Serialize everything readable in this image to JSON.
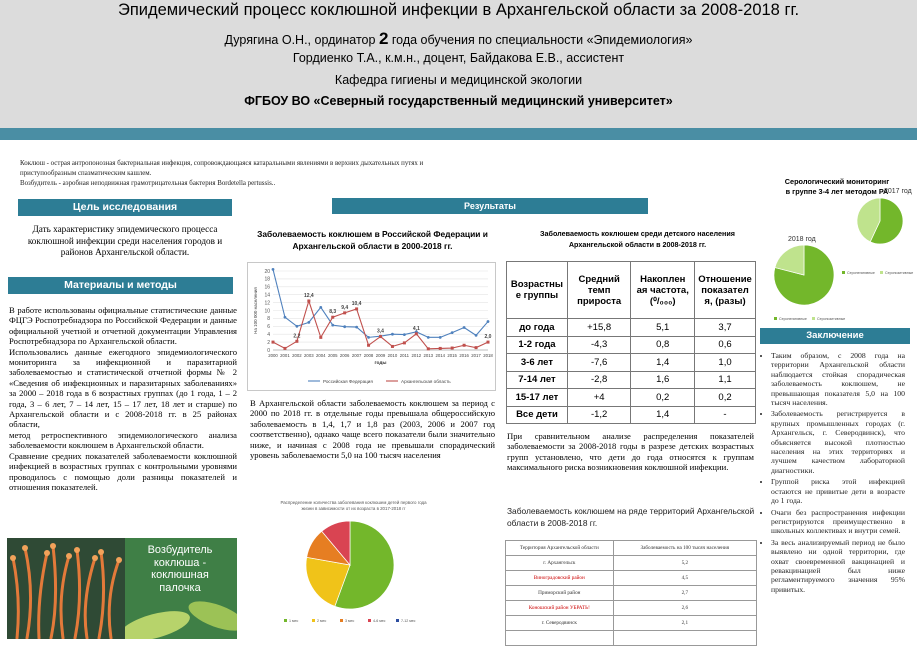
{
  "header": {
    "title": "Эпидемический процесс коклюшной инфекции в Архангельской области за 2008-2018 гг.",
    "authors_line1_a": "Дурягина О.Н., ординатор ",
    "authors_line1_num": "2",
    "authors_line1_b": " года обучения по специальности «Эпидемиология»",
    "authors_line2": "Гордиенко Т.А., к.м.н., доцент, Байдакова Е.В., ассистент",
    "department": "Кафедра гигиены и медицинской экологии",
    "university": "ФГБОУ ВО «Северный государственный медицинский университет»"
  },
  "intro": {
    "line1": "Коклюш - острая антропонозная бактериальная инфекция, сопровождающаяся катаральными явлениями в верхних дыхательных путях и",
    "line2": "приступообразным спазматическим кашлем.",
    "line3": "Возбудитель - аэробная неподвижная грамотрицательная бактерия Bordetella pertussis.."
  },
  "aim": {
    "heading": "Цель исследования",
    "text": "Дать характеристику эпидемического процесса коклюшной инфекции среди населения городов и районов Архангельской области."
  },
  "methods": {
    "heading": "Материалы и методы",
    "p1": "В работе использованы официальные статистические данные ФЦГЭ Роспотребнадзора по Российской Федерации и данные официальной учетной и отчетной документации Управления Роспотребнадзора по Архангельской области.",
    "p2": "Использовались данные ежегодного эпидемиологического мониторинга за инфекционной и паразитарной заболеваемостью и статистической отчетной формы № 2 «Сведения об инфекционных и паразитарных заболеваниях» за 2000 – 2018 года в 6 возрастных группах (до 1 года, 1 – 2 года, 3 – 6 лет, 7 – 14 лет, 15 – 17 лет, 18 лет и старше) по Архангельской области и с 2008-2018 гг. в 25 районах области,",
    "p3": "метод ретроспективного эпидемиологического анализа заболеваемости коклюшем в Архангельской области.",
    "p4": "Сравнение средних показателей заболеваемости коклюшной инфекцией в возрастных группах с контрольными уровнями проводилось с помощью доли разницы показателей и отношения показателей."
  },
  "image": {
    "caption": "Возбудитель коклюша - коклюшная палочка"
  },
  "results": {
    "heading": "Результаты",
    "chart1_title": "Заболеваемость коклюшем в Российской Федерации и Архангельской области в 2000-2018 гг.",
    "chart1_text": "В Архангельской области заболеваемость коклюшем за период с 2000 по 2018 гг. в отдельные годы превышала общероссийскую заболеваемость в 1,4, 1,7 и 1,8 раз (2003, 2006 и 2007 год соответственно), однако чаще всего показатели были значительно ниже, и начиная с 2008 года не превышали спорадический уровень заболеваемости 5,0 на 100 тысяч населения",
    "pie_title": "Распределение количества заболевания коклюшем детей первого года жизни в зависимости от их возраста в 2017-2018 гг",
    "table_title": "Заболеваемость коклюшем среди детского населения Архангельской области в 2008-2018 гг.",
    "table_text": "При сравнительном анализе распределения показателей заболеваемости за 2008-2018 годы в разрезе детских возрастных групп установлено, что дети до года относятся к группам максимального риска возникновения коклюшной инфекции.",
    "territory_title": "Заболеваемость коклюшем на ряде территорий Архангельской области в 2008-2018 гг."
  },
  "serology": {
    "title_line1": "Серологический мониторинг",
    "title_line2": "в группе 3-4 лет методом РА",
    "year_2017": "2017 год",
    "year_2018": "2018 год"
  },
  "conclusion": {
    "heading": "Заключение",
    "items": [
      "Таким образом, с 2008 года на территории Архангельской области наблюдается стойкая спорадическая заболеваемость коклюшем, не превышающая показателя 5,0 на 100 тысяч населения.",
      "Заболеваемость регистрируется в крупных промышленных городах (г. Архангельск, г. Северодвинск), что объясняется высокой плотностью населения на этих территориях и лучшем качеством лабораторной диагностики.",
      "Группой риска этой инфекцией остаются не привитые дети в возрасте до 1 года.",
      "Очаги без распространения инфекции регистрируются преимущественно в школьных коллективах и внутри семей.",
      "За весь анализируемый период не было выявлено ни одной территории, где охват своевременной вакцинацией и ревакцинацией был ниже регламентируемого значения 95% привитых."
    ]
  },
  "tables": {
    "age": {
      "headers": [
        "Возрастны е группы",
        "Средний темп прироста",
        "Накоплен ая частота, (⁰/₀₀₀)",
        "Отношение показател я, (разы)"
      ],
      "rows": [
        [
          "до года",
          "+15,8",
          "5,1",
          "3,7"
        ],
        [
          "1-2 года",
          "-4,3",
          "0,8",
          "0,6"
        ],
        [
          "3-6 лет",
          "-7,6",
          "1,4",
          "1,0"
        ],
        [
          "7-14 лет",
          "-2,8",
          "1,6",
          "1,1"
        ],
        [
          "15-17 лет",
          "+4",
          "0,2",
          "0,2"
        ],
        [
          "Все дети",
          "-1,2",
          "1,4",
          "-"
        ]
      ]
    },
    "territories": {
      "headers": [
        "Территория Архангельской области",
        "Заболеваемость на 100 тысяч населения"
      ],
      "rows": [
        [
          "г. Архангельск",
          "5,2"
        ],
        [
          "Виноградовский район",
          "4,5"
        ],
        [
          "Приморский район",
          "2,7"
        ],
        [
          "Коношский район УБРАТЬ!",
          "2,6"
        ],
        [
          "г. Северодвинск",
          "2,1"
        ],
        [
          "",
          ""
        ]
      ]
    }
  },
  "colors": {
    "teal": "#2d7d95",
    "header_band": "#4a8ea4",
    "rf_line": "#4f81bd",
    "ao_line": "#c0504d",
    "pie_green": "#73b72b"
  },
  "chart_data": [
    {
      "type": "line",
      "title": "",
      "ylabel": "На 100 000 населения",
      "xlabel": "годы",
      "x": [
        "2000",
        "2001",
        "2002",
        "2003",
        "2004",
        "2005",
        "2006",
        "2007",
        "2008",
        "2009",
        "2010",
        "2011",
        "2012",
        "2013",
        "2014",
        "2015",
        "2016",
        "2017",
        "2018"
      ],
      "yticks": [
        0,
        2,
        4,
        6,
        8,
        10,
        12,
        14,
        16,
        18,
        20
      ],
      "ylim": [
        0,
        20
      ],
      "legend": "bottom",
      "series": [
        {
          "name": "Российская Федерация",
          "color": "#4f81bd",
          "values": [
            20.4,
            8.3,
            6.0,
            7.0,
            10.8,
            6.3,
            5.9,
            5.8,
            3.2,
            3.5,
            4.0,
            3.9,
            4.6,
            3.2,
            3.2,
            4.4,
            5.7,
            3.7,
            7.2
          ]
        },
        {
          "name": "Архангельская область",
          "color": "#c0504d",
          "values": [
            2.0,
            0.4,
            2.2,
            12.4,
            3.2,
            8.3,
            9.4,
            10.4,
            1.2,
            3.4,
            0.9,
            1.8,
            4.1,
            0.3,
            0.4,
            0.5,
            1.2,
            0.6,
            2.0
          ],
          "labels": {
            "2": "2,2",
            "3": "12,4",
            "5": "8,3",
            "6": "9,4",
            "7": "10,4",
            "9": "3,4",
            "12": "4,1",
            "18": "2,0"
          }
        }
      ]
    },
    {
      "type": "pie",
      "title": "Распределение количества заболевания коклюшем детей первого года жизни в зависимости от их возраста в 2017-2018 гг",
      "categories": [
        "1 мес",
        "2 мес",
        "3 мес",
        "4-6 мес",
        "7-12 мес"
      ],
      "colors": [
        "#73b72b",
        "#f0c319",
        "#e67e22",
        "#d94452",
        "#2d4ea0"
      ],
      "values": [
        55.6,
        22.2,
        11.1,
        11.1,
        0
      ]
    },
    {
      "type": "pie",
      "title": "2017 год",
      "categories": [
        "Серонегативные",
        "Серопозитивные"
      ],
      "colors": [
        "#73b72b",
        "#bfe38d"
      ],
      "values": [
        57,
        43
      ]
    },
    {
      "type": "pie",
      "title": "2018 год",
      "categories": [
        "Серонегативные",
        "Серопозитивные"
      ],
      "colors": [
        "#73b72b",
        "#bfe38d"
      ],
      "values": [
        79,
        21
      ]
    }
  ]
}
